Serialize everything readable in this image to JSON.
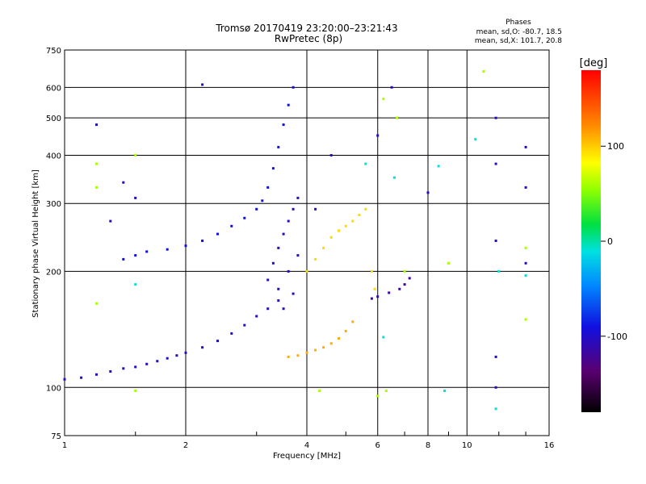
{
  "chart_data": {
    "type": "scatter",
    "title": "Tromsø 20170419 23:20:00–23:21:43",
    "subtitle": "RwPretec (8p)",
    "xlabel": "Frequency [MHz]",
    "ylabel": "Stationary phase Virtual Height [km]",
    "x_scale": "log",
    "y_scale": "log",
    "xlim": [
      1,
      16
    ],
    "ylim": [
      75,
      750
    ],
    "x_ticks": [
      1,
      2,
      4,
      6,
      8,
      10,
      16
    ],
    "x_tick_labels": [
      "1",
      "2",
      "4",
      "6",
      "8",
      "10",
      "16"
    ],
    "y_ticks": [
      75,
      100,
      200,
      300,
      400,
      500,
      600,
      750
    ],
    "y_tick_labels": [
      "75",
      "100",
      "200",
      "300",
      "400",
      "500",
      "600",
      "750"
    ],
    "grid": true,
    "phase_info": {
      "title": "Phases",
      "line_o": "mean, sd,O: -80.7, 18.5",
      "line_x": "mean, sd,X: 101.7, 20.8"
    },
    "colorbar": {
      "label": "[deg]",
      "range": [
        -180,
        180
      ],
      "ticks": [
        -100,
        0,
        100
      ],
      "tick_labels": [
        "-100",
        "0",
        "100"
      ]
    },
    "series": [
      {
        "component": "O-mode low layer trace",
        "phase_deg": -100,
        "points": [
          [
            1.0,
            105
          ],
          [
            1.1,
            106
          ],
          [
            1.2,
            108
          ],
          [
            1.3,
            110
          ],
          [
            1.4,
            112
          ],
          [
            1.5,
            113
          ],
          [
            1.6,
            115
          ],
          [
            1.7,
            117
          ],
          [
            1.8,
            119
          ],
          [
            1.9,
            121
          ],
          [
            2.0,
            123
          ],
          [
            2.2,
            127
          ],
          [
            2.4,
            132
          ],
          [
            2.6,
            138
          ],
          [
            2.8,
            145
          ],
          [
            3.0,
            153
          ],
          [
            3.2,
            160
          ],
          [
            3.4,
            168
          ]
        ]
      },
      {
        "component": "O-mode F-layer trace",
        "phase_deg": -90,
        "points": [
          [
            1.4,
            215
          ],
          [
            1.5,
            220
          ],
          [
            1.6,
            225
          ],
          [
            1.8,
            228
          ],
          [
            2.0,
            233
          ],
          [
            2.2,
            240
          ],
          [
            2.4,
            250
          ],
          [
            2.6,
            262
          ],
          [
            2.8,
            275
          ],
          [
            3.0,
            290
          ],
          [
            3.1,
            305
          ],
          [
            3.2,
            330
          ],
          [
            3.3,
            370
          ],
          [
            3.4,
            420
          ],
          [
            3.5,
            480
          ],
          [
            3.6,
            540
          ],
          [
            3.7,
            600
          ]
        ]
      },
      {
        "component": "O-mode cusp cluster",
        "phase_deg": -105,
        "points": [
          [
            3.2,
            190
          ],
          [
            3.3,
            210
          ],
          [
            3.4,
            230
          ],
          [
            3.5,
            250
          ],
          [
            3.6,
            270
          ],
          [
            3.7,
            290
          ],
          [
            3.8,
            310
          ],
          [
            3.4,
            180
          ],
          [
            3.6,
            200
          ],
          [
            3.8,
            220
          ],
          [
            3.5,
            160
          ],
          [
            3.7,
            175
          ]
        ]
      },
      {
        "component": "X-mode E-layer trace",
        "phase_deg": 110,
        "points": [
          [
            3.6,
            120
          ],
          [
            3.8,
            121
          ],
          [
            4.0,
            123
          ],
          [
            4.2,
            125
          ],
          [
            4.4,
            127
          ],
          [
            4.6,
            130
          ],
          [
            4.8,
            134
          ],
          [
            5.0,
            140
          ],
          [
            5.2,
            148
          ]
        ]
      },
      {
        "component": "X-mode F-layer trace",
        "phase_deg": 95,
        "points": [
          [
            4.0,
            200
          ],
          [
            4.2,
            215
          ],
          [
            4.4,
            230
          ],
          [
            4.6,
            245
          ],
          [
            4.8,
            255
          ],
          [
            5.0,
            262
          ],
          [
            5.2,
            270
          ],
          [
            5.4,
            280
          ],
          [
            5.6,
            290
          ],
          [
            5.8,
            200
          ],
          [
            5.9,
            180
          ]
        ]
      },
      {
        "component": "O-mode extension",
        "phase_deg": -115,
        "points": [
          [
            5.8,
            170
          ],
          [
            6.0,
            172
          ],
          [
            6.4,
            176
          ],
          [
            6.8,
            180
          ],
          [
            7.0,
            185
          ],
          [
            7.2,
            192
          ]
        ]
      },
      {
        "component": "scattered points",
        "phase_deg": -100,
        "points": [
          [
            1.2,
            480
          ],
          [
            1.4,
            340
          ],
          [
            1.5,
            310
          ],
          [
            1.3,
            270
          ],
          [
            2.2,
            610
          ],
          [
            4.6,
            400
          ],
          [
            4.2,
            290
          ],
          [
            6.0,
            450
          ],
          [
            6.5,
            600
          ],
          [
            8.0,
            320
          ],
          [
            11.8,
            500
          ],
          [
            11.8,
            380
          ],
          [
            11.8,
            240
          ],
          [
            11.8,
            120
          ],
          [
            11.8,
            100
          ],
          [
            14.0,
            420
          ],
          [
            14.0,
            210
          ],
          [
            14.0,
            330
          ]
        ]
      },
      {
        "component": "scattered points",
        "phase_deg": 60,
        "points": [
          [
            1.2,
            380
          ],
          [
            1.2,
            330
          ],
          [
            1.2,
            165
          ],
          [
            1.5,
            400
          ],
          [
            1.5,
            98
          ],
          [
            6.2,
            560
          ],
          [
            6.7,
            500
          ],
          [
            7.0,
            200
          ],
          [
            9.0,
            210
          ],
          [
            11.0,
            660
          ],
          [
            4.3,
            98
          ],
          [
            6.3,
            98
          ],
          [
            14.0,
            230
          ],
          [
            14.0,
            150
          ],
          [
            6.0,
            95
          ]
        ]
      },
      {
        "component": "scattered points",
        "phase_deg": -10,
        "points": [
          [
            1.5,
            185
          ],
          [
            5.6,
            380
          ],
          [
            6.6,
            350
          ],
          [
            8.5,
            375
          ],
          [
            8.8,
            98
          ],
          [
            10.5,
            440
          ],
          [
            11.8,
            88
          ],
          [
            12.0,
            200
          ],
          [
            14.0,
            195
          ],
          [
            6.2,
            135
          ]
        ]
      }
    ]
  }
}
